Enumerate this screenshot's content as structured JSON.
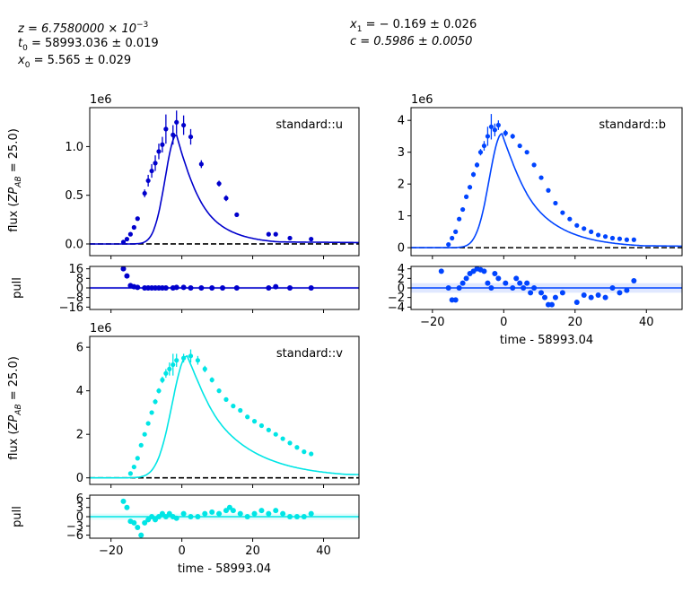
{
  "header": {
    "left_lines": [
      [
        "z = 6.7580000 × 10",
        "−3",
        ""
      ],
      [
        "t",
        "0",
        " = 58993.036 ± 0.019"
      ],
      [
        "x",
        "0",
        " = 5.565 ± 0.029"
      ]
    ],
    "right_lines": [
      [
        "x",
        "1",
        " = − 0.169 ± 0.026"
      ],
      [
        "c = 0.5986 ± 0.0050",
        "",
        ""
      ]
    ]
  },
  "labels": {
    "flux_ylabel": [
      "flux (",
      "ZP",
      "AB",
      " = 25.0)"
    ],
    "pull_ylabel": "pull",
    "xlabel": "time - 58993.04",
    "offset": "1e6"
  },
  "chart_data": [
    {
      "type": "scatter",
      "band": "standard::u",
      "color": "#0000cc",
      "xlim": [
        -26,
        50
      ],
      "flux_ylim": [
        -0.12,
        1.4
      ],
      "flux_yticks": [
        "0.0",
        "0.5",
        "1.0"
      ],
      "flux_ytick_values": [
        0,
        0.5,
        1.0
      ],
      "pull_ylim": [
        -18,
        18
      ],
      "pull_yticks": [
        "16",
        "8",
        "0",
        "−8",
        "−16"
      ],
      "pull_ytick_values": [
        16,
        8,
        0,
        -8,
        -16
      ],
      "xticks": [
        "−20",
        "0",
        "20",
        "40"
      ],
      "xtick_values": [
        -20,
        0,
        20,
        40
      ],
      "model": {
        "peak": 1.12,
        "t_peak": -1.5,
        "rise": 4.5,
        "decay": 7.5,
        "tail": 0.03
      },
      "points": [
        {
          "x": -16.5,
          "y": 0.02,
          "e": 0.02
        },
        {
          "x": -15.5,
          "y": 0.05,
          "e": 0.02
        },
        {
          "x": -14.5,
          "y": 0.1,
          "e": 0.02
        },
        {
          "x": -13.5,
          "y": 0.17,
          "e": 0.02
        },
        {
          "x": -12.5,
          "y": 0.26,
          "e": 0.02
        },
        {
          "x": -10.5,
          "y": 0.52,
          "e": 0.04
        },
        {
          "x": -9.5,
          "y": 0.65,
          "e": 0.06
        },
        {
          "x": -8.5,
          "y": 0.75,
          "e": 0.07
        },
        {
          "x": -7.5,
          "y": 0.83,
          "e": 0.08
        },
        {
          "x": -6.5,
          "y": 0.95,
          "e": 0.08
        },
        {
          "x": -5.5,
          "y": 1.02,
          "e": 0.08
        },
        {
          "x": -4.5,
          "y": 1.18,
          "e": 0.15
        },
        {
          "x": -2.5,
          "y": 1.12,
          "e": 0.1
        },
        {
          "x": -1.5,
          "y": 1.25,
          "e": 0.12
        },
        {
          "x": 0.5,
          "y": 1.22,
          "e": 0.1
        },
        {
          "x": 2.5,
          "y": 1.1,
          "e": 0.08
        },
        {
          "x": 5.5,
          "y": 0.82,
          "e": 0.04
        },
        {
          "x": 10.5,
          "y": 0.62,
          "e": 0.03
        },
        {
          "x": 12.5,
          "y": 0.47,
          "e": 0.03
        },
        {
          "x": 15.5,
          "y": 0.3,
          "e": 0.02
        },
        {
          "x": 24.5,
          "y": 0.1,
          "e": 0.01
        },
        {
          "x": 26.5,
          "y": 0.1,
          "e": 0.01
        },
        {
          "x": 30.5,
          "y": 0.06,
          "e": 0.01
        },
        {
          "x": 36.5,
          "y": 0.05,
          "e": 0.01
        }
      ],
      "pulls": [
        {
          "x": -16.5,
          "y": 16
        },
        {
          "x": -15.5,
          "y": 10
        },
        {
          "x": -14.5,
          "y": 2
        },
        {
          "x": -13.5,
          "y": 1
        },
        {
          "x": -12.5,
          "y": 0.5
        },
        {
          "x": -10.5,
          "y": 0
        },
        {
          "x": -9.5,
          "y": 0
        },
        {
          "x": -8.5,
          "y": 0
        },
        {
          "x": -7.5,
          "y": 0
        },
        {
          "x": -6.5,
          "y": 0
        },
        {
          "x": -5.5,
          "y": 0
        },
        {
          "x": -4.5,
          "y": 0
        },
        {
          "x": -2.5,
          "y": 0
        },
        {
          "x": -1.5,
          "y": 0.5
        },
        {
          "x": 0.5,
          "y": 0.5
        },
        {
          "x": 2.5,
          "y": 0
        },
        {
          "x": 5.5,
          "y": 0
        },
        {
          "x": 8.5,
          "y": 0
        },
        {
          "x": 11.5,
          "y": 0
        },
        {
          "x": 15.5,
          "y": 0
        },
        {
          "x": 24.5,
          "y": 0
        },
        {
          "x": 26.5,
          "y": 1
        },
        {
          "x": 30.5,
          "y": 0
        },
        {
          "x": 36.5,
          "y": 0
        }
      ]
    },
    {
      "type": "scatter",
      "band": "standard::b",
      "color": "#0044ff",
      "xlim": [
        -26,
        50
      ],
      "flux_ylim": [
        -0.25,
        4.4
      ],
      "flux_yticks": [
        "0",
        "1",
        "2",
        "3",
        "4"
      ],
      "flux_ytick_values": [
        0,
        1,
        2,
        3,
        4
      ],
      "pull_ylim": [
        -4.5,
        4.5
      ],
      "pull_yticks": [
        "4",
        "2",
        "0",
        "−2",
        "−4"
      ],
      "pull_ytick_values": [
        4,
        2,
        0,
        -2,
        -4
      ],
      "xticks": [
        "−20",
        "0",
        "20",
        "40"
      ],
      "xtick_values": [
        -20,
        0,
        20,
        40
      ],
      "model": {
        "peak": 3.58,
        "t_peak": -0.5,
        "rise": 5.0,
        "decay": 10.0,
        "tail": 0.1
      },
      "points": [
        {
          "x": -15.5,
          "y": 0.1,
          "e": 0.05
        },
        {
          "x": -14.5,
          "y": 0.3,
          "e": 0.05
        },
        {
          "x": -13.5,
          "y": 0.5,
          "e": 0.05
        },
        {
          "x": -12.5,
          "y": 0.9,
          "e": 0.06
        },
        {
          "x": -11.5,
          "y": 1.2,
          "e": 0.06
        },
        {
          "x": -10.5,
          "y": 1.6,
          "e": 0.07
        },
        {
          "x": -9.5,
          "y": 1.9,
          "e": 0.07
        },
        {
          "x": -8.5,
          "y": 2.3,
          "e": 0.08
        },
        {
          "x": -7.5,
          "y": 2.6,
          "e": 0.08
        },
        {
          "x": -6.5,
          "y": 3.0,
          "e": 0.1
        },
        {
          "x": -5.5,
          "y": 3.2,
          "e": 0.15
        },
        {
          "x": -4.5,
          "y": 3.5,
          "e": 0.3
        },
        {
          "x": -3.5,
          "y": 3.8,
          "e": 0.4
        },
        {
          "x": -2.5,
          "y": 3.7,
          "e": 0.2
        },
        {
          "x": -1.5,
          "y": 3.85,
          "e": 0.15
        },
        {
          "x": 0.5,
          "y": 3.6,
          "e": 0.1
        },
        {
          "x": 2.5,
          "y": 3.5,
          "e": 0.08
        },
        {
          "x": 4.5,
          "y": 3.2,
          "e": 0.07
        },
        {
          "x": 6.5,
          "y": 3.0,
          "e": 0.06
        },
        {
          "x": 8.5,
          "y": 2.6,
          "e": 0.05
        },
        {
          "x": 10.5,
          "y": 2.2,
          "e": 0.05
        },
        {
          "x": 12.5,
          "y": 1.8,
          "e": 0.04
        },
        {
          "x": 14.5,
          "y": 1.4,
          "e": 0.04
        },
        {
          "x": 16.5,
          "y": 1.1,
          "e": 0.03
        },
        {
          "x": 18.5,
          "y": 0.9,
          "e": 0.03
        },
        {
          "x": 20.5,
          "y": 0.7,
          "e": 0.03
        },
        {
          "x": 22.5,
          "y": 0.6,
          "e": 0.02
        },
        {
          "x": 24.5,
          "y": 0.5,
          "e": 0.02
        },
        {
          "x": 26.5,
          "y": 0.4,
          "e": 0.02
        },
        {
          "x": 28.5,
          "y": 0.35,
          "e": 0.02
        },
        {
          "x": 30.5,
          "y": 0.3,
          "e": 0.02
        },
        {
          "x": 32.5,
          "y": 0.28,
          "e": 0.02
        },
        {
          "x": 34.5,
          "y": 0.25,
          "e": 0.02
        },
        {
          "x": 36.5,
          "y": 0.25,
          "e": 0.02
        }
      ],
      "pulls": [
        {
          "x": -17.5,
          "y": 3.5
        },
        {
          "x": -15.5,
          "y": 0
        },
        {
          "x": -14.5,
          "y": -2.5
        },
        {
          "x": -13.5,
          "y": -2.5
        },
        {
          "x": -12.5,
          "y": 0
        },
        {
          "x": -11.5,
          "y": 1
        },
        {
          "x": -10.5,
          "y": 2
        },
        {
          "x": -9.5,
          "y": 3
        },
        {
          "x": -8.5,
          "y": 3.5
        },
        {
          "x": -7.5,
          "y": 4
        },
        {
          "x": -6.5,
          "y": 3.8
        },
        {
          "x": -5.5,
          "y": 3.5
        },
        {
          "x": -4.5,
          "y": 1
        },
        {
          "x": -3.5,
          "y": 0
        },
        {
          "x": -2.5,
          "y": 3
        },
        {
          "x": -1.5,
          "y": 2
        },
        {
          "x": 0.5,
          "y": 1
        },
        {
          "x": 2.5,
          "y": 0
        },
        {
          "x": 3.5,
          "y": 2
        },
        {
          "x": 4.5,
          "y": 1
        },
        {
          "x": 5.5,
          "y": 0
        },
        {
          "x": 6.5,
          "y": 1
        },
        {
          "x": 7.5,
          "y": -1
        },
        {
          "x": 8.5,
          "y": 0
        },
        {
          "x": 10.5,
          "y": -1
        },
        {
          "x": 11.5,
          "y": -2
        },
        {
          "x": 12.5,
          "y": -3.5
        },
        {
          "x": 13.5,
          "y": -3.5
        },
        {
          "x": 14.5,
          "y": -2
        },
        {
          "x": 16.5,
          "y": -1
        },
        {
          "x": 20.5,
          "y": -3
        },
        {
          "x": 22.5,
          "y": -1.5
        },
        {
          "x": 24.5,
          "y": -2
        },
        {
          "x": 26.5,
          "y": -1.5
        },
        {
          "x": 28.5,
          "y": -2
        },
        {
          "x": 30.5,
          "y": 0
        },
        {
          "x": 32.5,
          "y": -1
        },
        {
          "x": 34.5,
          "y": -0.5
        },
        {
          "x": 36.5,
          "y": 1.5
        }
      ]
    },
    {
      "type": "scatter",
      "band": "standard::v",
      "color": "#00e5e5",
      "xlim": [
        -26,
        50
      ],
      "flux_ylim": [
        -0.3,
        6.5
      ],
      "flux_yticks": [
        "0",
        "2",
        "4",
        "6"
      ],
      "flux_ytick_values": [
        0,
        2,
        4,
        6
      ],
      "pull_ylim": [
        -7,
        7
      ],
      "pull_yticks": [
        "6",
        "3",
        "0",
        "−3",
        "−6"
      ],
      "pull_ytick_values": [
        6,
        3,
        0,
        -3,
        -6
      ],
      "xticks": [
        "−20",
        "0",
        "20",
        "40"
      ],
      "xtick_values": [
        -20,
        0,
        20,
        40
      ],
      "model": {
        "peak": 5.6,
        "t_peak": 1.5,
        "rise": 6.0,
        "decay": 13.0,
        "tail": 0.3
      },
      "points": [
        {
          "x": -14.5,
          "y": 0.2,
          "e": 0.05
        },
        {
          "x": -13.5,
          "y": 0.5,
          "e": 0.06
        },
        {
          "x": -12.5,
          "y": 0.9,
          "e": 0.07
        },
        {
          "x": -11.5,
          "y": 1.5,
          "e": 0.08
        },
        {
          "x": -10.5,
          "y": 2.0,
          "e": 0.09
        },
        {
          "x": -9.5,
          "y": 2.5,
          "e": 0.1
        },
        {
          "x": -8.5,
          "y": 3.0,
          "e": 0.1
        },
        {
          "x": -7.5,
          "y": 3.5,
          "e": 0.12
        },
        {
          "x": -6.5,
          "y": 4.0,
          "e": 0.12
        },
        {
          "x": -5.5,
          "y": 4.5,
          "e": 0.15
        },
        {
          "x": -4.5,
          "y": 4.8,
          "e": 0.2
        },
        {
          "x": -3.5,
          "y": 5.0,
          "e": 0.3
        },
        {
          "x": -2.5,
          "y": 5.2,
          "e": 0.5
        },
        {
          "x": -1.5,
          "y": 5.4,
          "e": 0.3
        },
        {
          "x": 0.5,
          "y": 5.5,
          "e": 0.2
        },
        {
          "x": 2.5,
          "y": 5.6,
          "e": 0.3
        },
        {
          "x": 4.5,
          "y": 5.4,
          "e": 0.2
        },
        {
          "x": 6.5,
          "y": 5.0,
          "e": 0.15
        },
        {
          "x": 8.5,
          "y": 4.5,
          "e": 0.12
        },
        {
          "x": 10.5,
          "y": 4.0,
          "e": 0.1
        },
        {
          "x": 12.5,
          "y": 3.6,
          "e": 0.1
        },
        {
          "x": 14.5,
          "y": 3.3,
          "e": 0.08
        },
        {
          "x": 16.5,
          "y": 3.1,
          "e": 0.08
        },
        {
          "x": 18.5,
          "y": 2.8,
          "e": 0.07
        },
        {
          "x": 20.5,
          "y": 2.6,
          "e": 0.07
        },
        {
          "x": 22.5,
          "y": 2.4,
          "e": 0.06
        },
        {
          "x": 24.5,
          "y": 2.2,
          "e": 0.06
        },
        {
          "x": 26.5,
          "y": 2.0,
          "e": 0.05
        },
        {
          "x": 28.5,
          "y": 1.8,
          "e": 0.05
        },
        {
          "x": 30.5,
          "y": 1.6,
          "e": 0.05
        },
        {
          "x": 32.5,
          "y": 1.4,
          "e": 0.04
        },
        {
          "x": 34.5,
          "y": 1.2,
          "e": 0.04
        },
        {
          "x": 36.5,
          "y": 1.1,
          "e": 0.04
        }
      ],
      "pulls": [
        {
          "x": -16.5,
          "y": 5
        },
        {
          "x": -15.5,
          "y": 3
        },
        {
          "x": -14.5,
          "y": -1.5
        },
        {
          "x": -13.5,
          "y": -2
        },
        {
          "x": -12.5,
          "y": -3.5
        },
        {
          "x": -11.5,
          "y": -6
        },
        {
          "x": -10.5,
          "y": -2
        },
        {
          "x": -9.5,
          "y": -1
        },
        {
          "x": -8.5,
          "y": 0
        },
        {
          "x": -7.5,
          "y": -1
        },
        {
          "x": -6.5,
          "y": 0
        },
        {
          "x": -5.5,
          "y": 1
        },
        {
          "x": -4.5,
          "y": 0
        },
        {
          "x": -3.5,
          "y": 1
        },
        {
          "x": -2.5,
          "y": 0
        },
        {
          "x": -1.5,
          "y": -0.5
        },
        {
          "x": 0.5,
          "y": 1
        },
        {
          "x": 2.5,
          "y": 0
        },
        {
          "x": 4.5,
          "y": 0
        },
        {
          "x": 6.5,
          "y": 1
        },
        {
          "x": 8.5,
          "y": 1.5
        },
        {
          "x": 10.5,
          "y": 1
        },
        {
          "x": 12.5,
          "y": 2
        },
        {
          "x": 13.5,
          "y": 3
        },
        {
          "x": 14.5,
          "y": 2
        },
        {
          "x": 16.5,
          "y": 1
        },
        {
          "x": 18.5,
          "y": 0
        },
        {
          "x": 20.5,
          "y": 1
        },
        {
          "x": 22.5,
          "y": 2
        },
        {
          "x": 24.5,
          "y": 1
        },
        {
          "x": 26.5,
          "y": 2
        },
        {
          "x": 28.5,
          "y": 1
        },
        {
          "x": 30.5,
          "y": 0
        },
        {
          "x": 32.5,
          "y": 0
        },
        {
          "x": 34.5,
          "y": 0
        },
        {
          "x": 36.5,
          "y": 1
        }
      ]
    }
  ]
}
